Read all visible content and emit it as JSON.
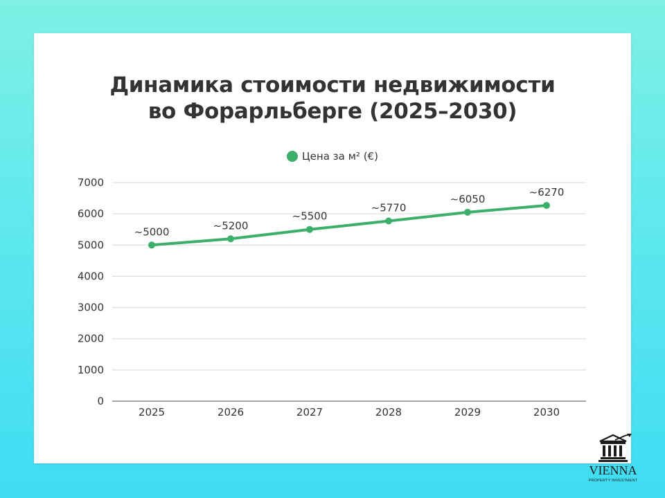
{
  "chart_data": {
    "type": "line",
    "title_lines": [
      "Динамика стоимости недвижимости",
      "во Форарльберге (2025–2030)"
    ],
    "categories": [
      "2025",
      "2026",
      "2027",
      "2028",
      "2029",
      "2030"
    ],
    "series": [
      {
        "name": "Цена за м² (€)",
        "values": [
          5000,
          5200,
          5500,
          5770,
          6050,
          6270
        ],
        "labels": [
          "~5000",
          "~5200",
          "~5500",
          "~5770",
          "~6050",
          "~6270"
        ],
        "color": "#3caf6a"
      }
    ],
    "ylim": [
      0,
      7000
    ],
    "yticks": [
      "0",
      "1000",
      "2000",
      "3000",
      "4000",
      "5000",
      "6000",
      "7000"
    ],
    "grid": true,
    "legend_position": "top-center"
  },
  "logo": {
    "name": "VIENNA",
    "subtitle": "PROPERTY INVESTMENT"
  }
}
